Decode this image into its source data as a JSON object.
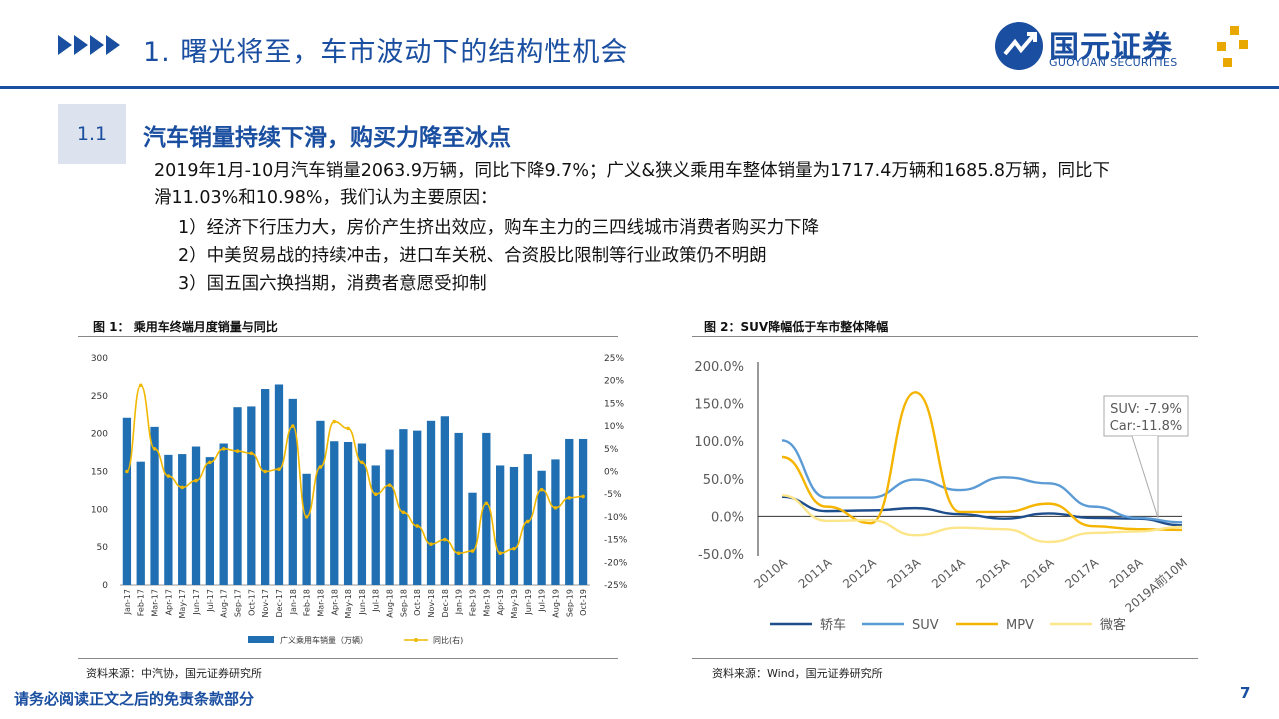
{
  "header": {
    "title": "1. 曙光将至，车市波动下的结构性机会",
    "logo_cn": "国元证券",
    "logo_en": "GUOYUAN SECURITIES"
  },
  "section": {
    "number": "1.1",
    "title": "汽车销量持续下滑，购买力降至冰点",
    "paragraph": "2019年1月-10月汽车销量2063.9万辆，同比下降9.7%；广义&狭义乘用车整体销量为1717.4万辆和1685.8万辆，同比下滑11.03%和10.98%，我们认为主要原因：",
    "bullets": [
      "1）经济下行压力大，房价产生挤出效应，购车主力的三四线城市消费者购买力下降",
      "2）中美贸易战的持续冲击，进口车关税、合资股比限制等行业政策仍不明朗",
      "3）国五国六换挡期，消费者意愿受抑制"
    ]
  },
  "figure1": {
    "title": "图 1： 乘用车终端月度销量与同比",
    "source": "资料来源：中汽协，国元证券研究所"
  },
  "figure2": {
    "title": "图 2：SUV降幅低于车市整体降幅",
    "source": "资料来源：Wind，国元证券研究所",
    "annotation": [
      "SUV: -7.9%",
      "Car:-11.8%"
    ]
  },
  "footer": {
    "disclaimer": "请务必阅读正文之后的免责条款部分",
    "page": "7"
  },
  "colors": {
    "brand_blue": "#1a4ea0",
    "bar_blue": "#1f6fb2",
    "line_gold": "#f0b800",
    "suv_blue": "#5b9bd5",
    "car_navy": "#1f4e8c",
    "mpv_gold": "#f5b400",
    "bus_yellow": "#fde58a"
  },
  "chart_data": [
    {
      "type": "bar",
      "title": "",
      "categories": [
        "Jan-17",
        "Feb-17",
        "Mar-17",
        "Apr-17",
        "May-17",
        "Jun-17",
        "Jul-17",
        "Aug-17",
        "Sep-17",
        "Oct-17",
        "Nov-17",
        "Dec-17",
        "Jan-18",
        "Feb-18",
        "Mar-18",
        "Apr-18",
        "May-18",
        "Jun-18",
        "Jul-18",
        "Aug-18",
        "Sep-18",
        "Oct-18",
        "Nov-18",
        "Dec-18",
        "Jan-19",
        "Feb-19",
        "Mar-19",
        "Apr-19",
        "May-19",
        "Jun-19",
        "Jul-19",
        "Aug-19",
        "Sep-19",
        "Oct-19"
      ],
      "series": [
        {
          "name": "广义乘用车销量（万辆）",
          "axis": "left",
          "type": "bar",
          "values": [
            221,
            163,
            209,
            172,
            173,
            183,
            169,
            187,
            235,
            236,
            259,
            265,
            246,
            147,
            217,
            190,
            189,
            187,
            158,
            179,
            206,
            204,
            217,
            223,
            201,
            122,
            201,
            158,
            156,
            173,
            151,
            166,
            193,
            193
          ]
        },
        {
          "name": "同比(右)",
          "axis": "right",
          "type": "line",
          "values": [
            0,
            19,
            5,
            -1,
            -3.5,
            -2,
            2,
            5,
            4.5,
            4,
            0,
            0.5,
            10,
            -10,
            1,
            11,
            9.5,
            2,
            -5,
            -3,
            -9,
            -12,
            -16,
            -15,
            -18,
            -17.5,
            -7,
            -18,
            -17,
            -11,
            -4,
            -8,
            -5.8,
            -5.5
          ]
        }
      ],
      "yaxis_left": {
        "min": 0,
        "max": 300,
        "ticks": [
          0,
          50,
          100,
          150,
          200,
          250,
          300
        ]
      },
      "yaxis_right": {
        "min": -25,
        "max": 25,
        "ticks": [
          "25%",
          "20%",
          "15%",
          "10%",
          "5%",
          "0%",
          "-5%",
          "-10%",
          "-15%",
          "-20%",
          "-25%"
        ]
      },
      "legend": "bottom",
      "grid": false
    },
    {
      "type": "line",
      "title": "",
      "categories": [
        "2010A",
        "2011A",
        "2012A",
        "2013A",
        "2014A",
        "2015A",
        "2016A",
        "2017A",
        "2018A",
        "2019A前10M"
      ],
      "series": [
        {
          "name": "轿车",
          "values": [
            26,
            7,
            8,
            11,
            3,
            -3,
            4,
            -2,
            -3,
            -11.8
          ]
        },
        {
          "name": "SUV",
          "values": [
            101,
            25,
            25,
            49,
            35,
            52,
            44,
            13,
            -2,
            -7.9
          ]
        },
        {
          "name": "MPV",
          "values": [
            79,
            13,
            -9,
            165,
            6,
            6,
            17,
            -13,
            -17,
            -18
          ]
        },
        {
          "name": "微客",
          "values": [
            28,
            -6,
            -5,
            -25,
            -15,
            -17,
            -34,
            -22,
            -20,
            -14
          ]
        }
      ],
      "yaxis": {
        "min": -50,
        "max": 200,
        "ticks": [
          "200.0%",
          "150.0%",
          "100.0%",
          "50.0%",
          "0.0%",
          "-50.0%"
        ]
      },
      "legend": "bottom",
      "grid": false
    }
  ]
}
